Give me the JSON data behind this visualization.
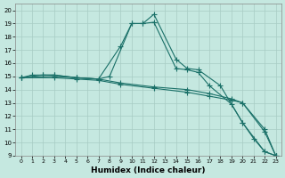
{
  "xlabel": "Humidex (Indice chaleur)",
  "ylabel": "",
  "xlim": [
    -0.5,
    23.5
  ],
  "ylim": [
    9,
    20.5
  ],
  "xticks": [
    0,
    1,
    2,
    3,
    4,
    5,
    6,
    7,
    8,
    9,
    10,
    11,
    12,
    13,
    14,
    15,
    16,
    17,
    18,
    19,
    20,
    21,
    22,
    23
  ],
  "yticks": [
    9,
    10,
    11,
    12,
    13,
    14,
    15,
    16,
    17,
    18,
    19,
    20
  ],
  "bg_color": "#c5e8e0",
  "grid_color": "#a8ccc4",
  "line_color": "#1a7068",
  "line1_x": [
    0,
    2,
    3,
    5,
    7,
    8,
    10,
    11,
    12,
    14,
    15,
    16,
    18,
    20,
    21,
    22,
    23
  ],
  "line1_y": [
    14.9,
    15.1,
    15.1,
    14.9,
    14.8,
    15.0,
    19.0,
    19.0,
    19.7,
    16.3,
    15.6,
    15.5,
    14.3,
    11.5,
    10.3,
    9.3,
    9.0
  ],
  "line2_x": [
    0,
    1,
    2,
    3,
    5,
    7,
    9,
    10,
    11,
    12,
    14,
    15,
    16,
    17,
    19,
    20,
    22,
    23
  ],
  "line2_y": [
    14.9,
    15.1,
    15.1,
    15.1,
    14.9,
    14.8,
    17.3,
    19.0,
    19.0,
    19.1,
    15.6,
    15.5,
    15.3,
    14.3,
    12.9,
    11.5,
    9.3,
    9.0
  ],
  "line3_x": [
    0,
    3,
    5,
    7,
    9,
    12,
    15,
    17,
    19,
    20,
    22,
    23
  ],
  "line3_y": [
    14.9,
    15.0,
    14.9,
    14.8,
    14.5,
    14.2,
    14.0,
    13.7,
    13.3,
    13.0,
    11.0,
    9.0
  ],
  "line4_x": [
    0,
    3,
    5,
    7,
    9,
    12,
    15,
    17,
    19,
    20,
    22,
    23
  ],
  "line4_y": [
    14.9,
    14.9,
    14.8,
    14.7,
    14.4,
    14.1,
    13.8,
    13.5,
    13.2,
    13.0,
    10.8,
    9.0
  ]
}
